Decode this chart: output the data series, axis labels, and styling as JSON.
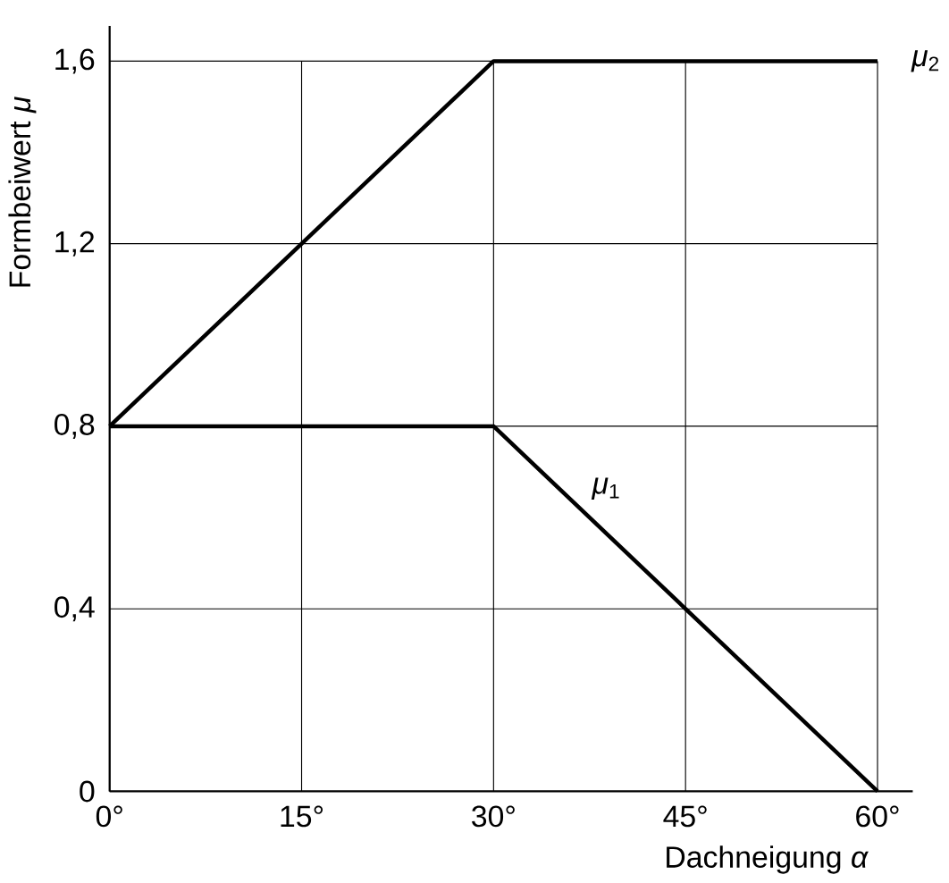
{
  "chart_data": {
    "type": "line",
    "xlabel": "Dachneigung *α*",
    "ylabel": "Formbeiwert *μ*",
    "x": [
      0,
      30,
      60
    ],
    "series": [
      {
        "name": "*μ*$_{2}$",
        "color": "#000000",
        "values": [
          0.8,
          1.6,
          1.6
        ]
      },
      {
        "name": "*μ*$_{1}$",
        "color": "#000000",
        "values": [
          0.8,
          0.8,
          0
        ]
      }
    ],
    "xlim": [
      0,
      60
    ],
    "ylim": [
      0,
      1.6
    ],
    "xticks": [
      {
        "value": 0,
        "label": "0°"
      },
      {
        "value": 15,
        "label": "15°"
      },
      {
        "value": 30,
        "label": "30°"
      },
      {
        "value": 45,
        "label": "45°"
      },
      {
        "value": 60,
        "label": "60°"
      }
    ],
    "yticks": [
      0,
      {
        "value": 0.4,
        "label": "0,4"
      },
      {
        "value": 0.8,
        "label": "0,8"
      },
      {
        "value": 1.2,
        "label": "1,2"
      },
      {
        "value": 1.6,
        "label": "1,6"
      }
    ],
    "grid": true,
    "marker": "none",
    "line_style": "solid"
  }
}
